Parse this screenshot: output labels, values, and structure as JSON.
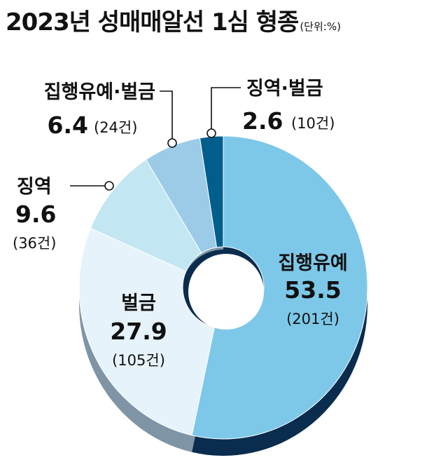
{
  "title": "2023년 성매매알선 1심 형종",
  "unit": "(단위:%)",
  "colors": {
    "집행유예": "#7dc8e8",
    "벌금": "#e6f3fb",
    "징역": "#c3e6f3",
    "집행유예·벌금": "#9ccbe8",
    "징역·벌금": "#005e8c",
    "shadow_dark": "#0a2c4e",
    "shadow_light": "#7f95a6",
    "leader": "#111111"
  },
  "chart_data": {
    "type": "pie",
    "donut": true,
    "unit": "%",
    "slices": [
      {
        "name": "집행유예",
        "value": 53.5,
        "value_label": "53.5",
        "count": "(201건)"
      },
      {
        "name": "벌금",
        "value": 27.9,
        "value_label": "27.9",
        "count": "(105건)"
      },
      {
        "name": "징역",
        "value": 9.6,
        "value_label": "9.6",
        "count": "(36건)"
      },
      {
        "name": "집행유예·벌금",
        "value": 6.4,
        "value_label": "6.4",
        "count": "(24건)"
      },
      {
        "name": "징역·벌금",
        "value": 2.6,
        "value_label": "2.6",
        "count": "(10건)"
      }
    ]
  }
}
